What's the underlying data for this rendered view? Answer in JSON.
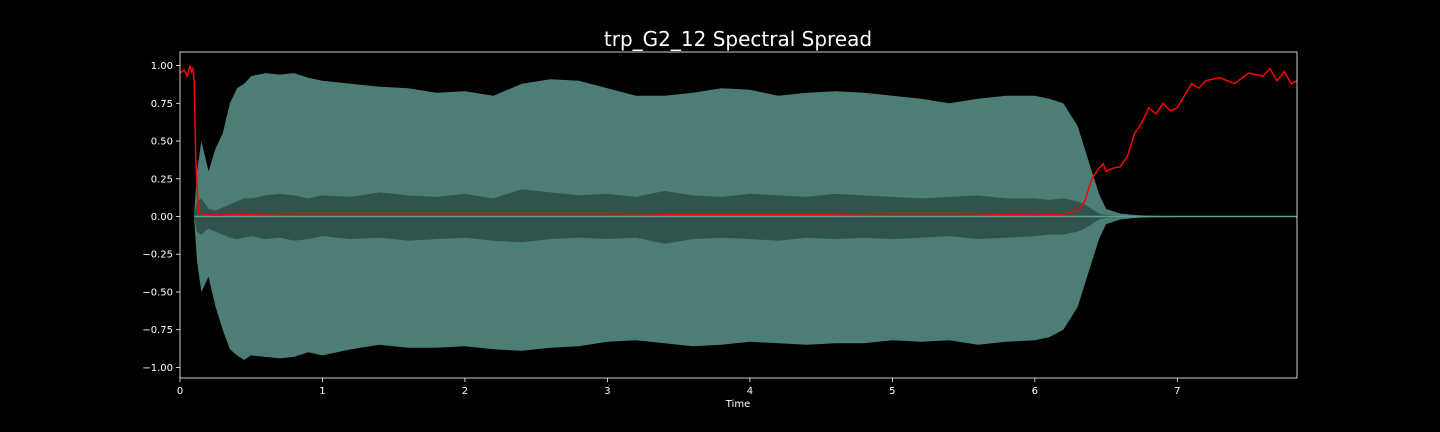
{
  "chart_data": {
    "type": "line",
    "title": "trp_G2_12 Spectral Spread",
    "xlabel": "Time",
    "ylabel": "",
    "xlim": [
      0,
      7.84
    ],
    "ylim": [
      -1.07,
      1.09
    ],
    "x_ticks": [
      0,
      1,
      2,
      3,
      4,
      5,
      6,
      7
    ],
    "x_tick_labels": [
      "0",
      "1",
      "2",
      "3",
      "4",
      "5",
      "6",
      "7"
    ],
    "y_ticks": [
      1.0,
      0.75,
      0.5,
      0.25,
      0.0,
      -0.25,
      -0.5,
      -0.75,
      -1.0
    ],
    "y_tick_labels": [
      "1.00",
      "0.75",
      "0.50",
      "0.25",
      "0.00",
      "−0.25",
      "−0.50",
      "−0.75",
      "−1.00"
    ],
    "grid": false,
    "legend": "none",
    "colors": {
      "background": "#000000",
      "axes": "#ffffff",
      "waveform": "#5f9e93",
      "waveform_inner": "#2f4f4a",
      "spread": "#ff0000"
    },
    "series": [
      {
        "kind": "waveform_envelope",
        "x": [
          0.1,
          0.12,
          0.15,
          0.2,
          0.25,
          0.3,
          0.35,
          0.4,
          0.45,
          0.5,
          0.6,
          0.7,
          0.8,
          0.9,
          1.0,
          1.2,
          1.4,
          1.6,
          1.8,
          2.0,
          2.2,
          2.4,
          2.6,
          2.8,
          3.0,
          3.2,
          3.4,
          3.6,
          3.8,
          4.0,
          4.2,
          4.4,
          4.6,
          4.8,
          5.0,
          5.2,
          5.4,
          5.6,
          5.8,
          6.0,
          6.1,
          6.2,
          6.3,
          6.35,
          6.4,
          6.45,
          6.5,
          6.6,
          6.7,
          6.8,
          7.0,
          7.2,
          7.5,
          7.84
        ],
        "upper": [
          0.02,
          0.3,
          0.5,
          0.3,
          0.45,
          0.55,
          0.75,
          0.85,
          0.88,
          0.93,
          0.95,
          0.94,
          0.95,
          0.92,
          0.9,
          0.88,
          0.86,
          0.85,
          0.82,
          0.83,
          0.8,
          0.88,
          0.91,
          0.9,
          0.85,
          0.8,
          0.8,
          0.82,
          0.85,
          0.84,
          0.8,
          0.82,
          0.83,
          0.82,
          0.8,
          0.78,
          0.75,
          0.78,
          0.8,
          0.8,
          0.78,
          0.75,
          0.6,
          0.45,
          0.3,
          0.15,
          0.05,
          0.02,
          0.01,
          0.005,
          0.003,
          0.002,
          0.001,
          0.001
        ],
        "lower": [
          -0.02,
          -0.3,
          -0.5,
          -0.4,
          -0.6,
          -0.75,
          -0.88,
          -0.92,
          -0.95,
          -0.92,
          -0.93,
          -0.94,
          -0.93,
          -0.9,
          -0.92,
          -0.88,
          -0.85,
          -0.87,
          -0.87,
          -0.86,
          -0.88,
          -0.89,
          -0.87,
          -0.86,
          -0.83,
          -0.82,
          -0.84,
          -0.86,
          -0.85,
          -0.83,
          -0.84,
          -0.85,
          -0.84,
          -0.84,
          -0.82,
          -0.83,
          -0.82,
          -0.85,
          -0.83,
          -0.82,
          -0.8,
          -0.75,
          -0.6,
          -0.45,
          -0.3,
          -0.15,
          -0.05,
          -0.02,
          -0.01,
          -0.005,
          -0.003,
          -0.002,
          -0.001,
          -0.001
        ],
        "inner_upper": [
          0.0,
          0.1,
          0.12,
          0.05,
          0.04,
          0.06,
          0.08,
          0.1,
          0.12,
          0.12,
          0.14,
          0.15,
          0.14,
          0.12,
          0.14,
          0.13,
          0.16,
          0.14,
          0.13,
          0.15,
          0.12,
          0.18,
          0.16,
          0.14,
          0.15,
          0.13,
          0.17,
          0.14,
          0.13,
          0.15,
          0.14,
          0.13,
          0.15,
          0.14,
          0.13,
          0.12,
          0.13,
          0.14,
          0.12,
          0.12,
          0.11,
          0.12,
          0.1,
          0.08,
          0.05,
          0.02,
          0.01,
          0.005,
          0.003,
          0.002,
          0.001,
          0.001,
          0.001,
          0.0
        ],
        "inner_lower": [
          0.0,
          -0.1,
          -0.12,
          -0.08,
          -0.1,
          -0.12,
          -0.14,
          -0.15,
          -0.14,
          -0.13,
          -0.15,
          -0.14,
          -0.16,
          -0.15,
          -0.13,
          -0.15,
          -0.14,
          -0.16,
          -0.15,
          -0.14,
          -0.16,
          -0.17,
          -0.15,
          -0.14,
          -0.15,
          -0.14,
          -0.18,
          -0.15,
          -0.14,
          -0.15,
          -0.16,
          -0.14,
          -0.15,
          -0.14,
          -0.15,
          -0.14,
          -0.13,
          -0.15,
          -0.14,
          -0.13,
          -0.12,
          -0.12,
          -0.1,
          -0.08,
          -0.05,
          -0.02,
          -0.01,
          -0.005,
          -0.003,
          -0.002,
          -0.001,
          -0.001,
          -0.001,
          0.0
        ]
      },
      {
        "kind": "line",
        "x": [
          0.0,
          0.03,
          0.05,
          0.07,
          0.08,
          0.09,
          0.1,
          0.11,
          0.12,
          0.13,
          0.15,
          0.2,
          0.3,
          0.5,
          0.8,
          1.0,
          1.5,
          2.0,
          2.5,
          3.0,
          3.5,
          4.0,
          4.5,
          5.0,
          5.5,
          6.0,
          6.2,
          6.3,
          6.35,
          6.4,
          6.45,
          6.48,
          6.5,
          6.55,
          6.6,
          6.65,
          6.7,
          6.75,
          6.8,
          6.85,
          6.9,
          6.95,
          7.0,
          7.05,
          7.1,
          7.15,
          7.2,
          7.3,
          7.4,
          7.5,
          7.6,
          7.65,
          7.7,
          7.75,
          7.8,
          7.84
        ],
        "y": [
          0.95,
          0.97,
          0.93,
          1.0,
          0.96,
          0.98,
          0.9,
          0.4,
          0.2,
          0.03,
          0.02,
          0.01,
          0.01,
          0.015,
          0.02,
          0.02,
          0.02,
          0.02,
          0.02,
          0.02,
          0.015,
          0.015,
          0.015,
          0.02,
          0.02,
          0.01,
          0.015,
          0.04,
          0.1,
          0.25,
          0.32,
          0.35,
          0.3,
          0.32,
          0.33,
          0.4,
          0.55,
          0.62,
          0.72,
          0.68,
          0.75,
          0.7,
          0.72,
          0.8,
          0.88,
          0.85,
          0.9,
          0.92,
          0.88,
          0.95,
          0.93,
          0.98,
          0.9,
          0.96,
          0.88,
          0.9
        ]
      }
    ]
  }
}
